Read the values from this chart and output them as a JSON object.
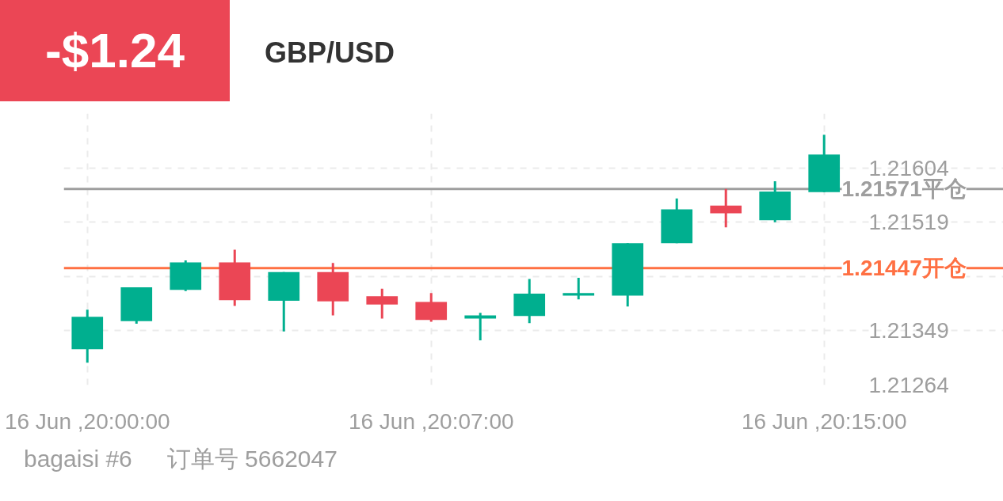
{
  "chart_data": {
    "type": "candlestick",
    "title": "-$1.24",
    "subtitle": "GBP/USD",
    "categories": [
      "16 Jun ,20:00:00",
      null,
      null,
      null,
      null,
      null,
      null,
      "16 Jun ,20:07:00",
      null,
      null,
      null,
      null,
      null,
      null,
      null,
      "16 Jun ,20:15:00"
    ],
    "ohlc": [
      [
        1.2132,
        1.21382,
        1.21299,
        1.21371
      ],
      [
        1.21364,
        1.21417,
        1.2136,
        1.21417
      ],
      [
        1.21413,
        1.21459,
        1.21411,
        1.21456
      ],
      [
        1.21456,
        1.21476,
        1.21388,
        1.21397
      ],
      [
        1.21396,
        1.21441,
        1.21348,
        1.21441
      ],
      [
        1.21441,
        1.21455,
        1.21373,
        1.21395
      ],
      [
        1.21403,
        1.21415,
        1.21368,
        1.2139
      ],
      [
        1.21394,
        1.21408,
        1.21363,
        1.21366
      ],
      [
        1.21368,
        1.21377,
        1.21334,
        1.21373
      ],
      [
        1.21372,
        1.2143,
        1.21361,
        1.21407
      ],
      [
        1.21404,
        1.21432,
        1.21398,
        1.21408
      ],
      [
        1.21404,
        1.21486,
        1.21387,
        1.21486
      ],
      [
        1.21486,
        1.21556,
        1.21486,
        1.21539
      ],
      [
        1.21545,
        1.21571,
        1.21511,
        1.21533
      ],
      [
        1.21522,
        1.21583,
        1.21519,
        1.21567
      ],
      [
        1.21566,
        1.21656,
        1.21566,
        1.21625
      ]
    ],
    "colors": [
      "#00af8f",
      "#00af8f",
      "#00af8f",
      "#eb4655",
      "#00af8f",
      "#eb4655",
      "#eb4655",
      "#eb4655",
      "#00af8f",
      "#00af8f",
      "#00af8f",
      "#00af8f",
      "#00af8f",
      "#eb4655",
      "#00af8f",
      "#00af8f"
    ],
    "ylim": [
      1.21264,
      1.21689
    ],
    "yticks": [
      1.21264,
      1.21349,
      {
        "value": 1.21434,
        "label": null
      },
      1.21519,
      1.21604
    ],
    "grid": true,
    "ref_lines": [
      {
        "axis": "y",
        "value": 1.21447,
        "label": "1.21447开仓",
        "color": "#ff7043"
      },
      {
        "axis": "y",
        "value": 1.21571,
        "label": "1.21571平仓",
        "color": "#9e9e9e"
      }
    ],
    "annotations": [
      "bagaisi #6",
      "订单号 5662047"
    ]
  }
}
